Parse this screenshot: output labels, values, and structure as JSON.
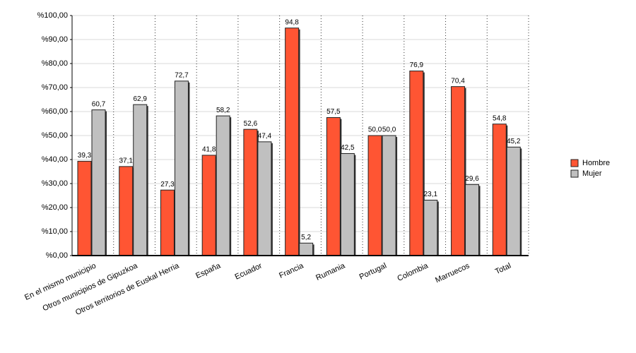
{
  "chart_data": {
    "type": "bar",
    "categories": [
      "En el mismo municipio",
      "Otros municipios de Gipuzkoa",
      "Otros territorios de Euskal Herria",
      "España",
      "Ecuador",
      "Francia",
      "Rumania",
      "Portugal",
      "Colombia",
      "Marruecos",
      "Total"
    ],
    "series": [
      {
        "name": "Hombre",
        "color": "#ff5533",
        "values": [
          39.3,
          37.1,
          27.3,
          41.8,
          52.6,
          94.8,
          57.5,
          50.0,
          76.9,
          70.4,
          54.8
        ],
        "value_labels": [
          "39,3",
          "37,1",
          "27,3",
          "41,8",
          "52,6",
          "94,8",
          "57,5",
          "50,0",
          "76,9",
          "70,4",
          "54,8"
        ]
      },
      {
        "name": "Mujer",
        "color": "#c0c0c0",
        "values": [
          60.7,
          62.9,
          72.7,
          58.2,
          47.4,
          5.2,
          42.5,
          50.0,
          23.1,
          29.6,
          45.2
        ],
        "value_labels": [
          "60,7",
          "62,9",
          "72,7",
          "58,2",
          "47,4",
          "5,2",
          "42,5",
          "50,0",
          "23,1",
          "29,6",
          "45,2"
        ]
      }
    ],
    "ylim": [
      0,
      100
    ],
    "yticks": [
      {
        "value": 0,
        "label": "%0,00"
      },
      {
        "value": 10,
        "label": "%10,00"
      },
      {
        "value": 20,
        "label": "%20,00"
      },
      {
        "value": 30,
        "label": "%30,00"
      },
      {
        "value": 40,
        "label": "%40,00"
      },
      {
        "value": 50,
        "label": "%50,00"
      },
      {
        "value": 60,
        "label": "%60,00"
      },
      {
        "value": 70,
        "label": "%70,00"
      },
      {
        "value": 80,
        "label": "%80,00"
      },
      {
        "value": 90,
        "label": "%90,00"
      },
      {
        "value": 100,
        "label": "%100,00"
      }
    ],
    "grid": true,
    "legend": "right"
  }
}
